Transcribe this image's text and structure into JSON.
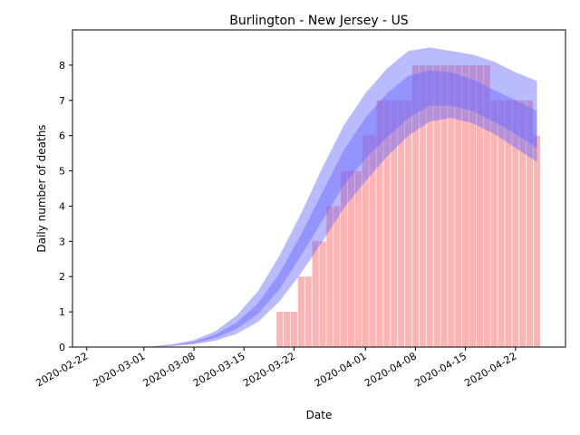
{
  "chart_data": {
    "type": "bar",
    "title": "Burlington - New Jersey - US",
    "xlabel": "Date",
    "ylabel": "Daily number of deaths",
    "x_tick_labels": [
      "2020-02-22",
      "2020-03-01",
      "2020-03-08",
      "2020-03-15",
      "2020-03-22",
      "2020-04-01",
      "2020-04-08",
      "2020-04-15",
      "2020-04-22"
    ],
    "y_tick_labels": [
      "0",
      "1",
      "2",
      "3",
      "4",
      "5",
      "6",
      "7",
      "8"
    ],
    "ylim": [
      0,
      9
    ],
    "xlim": [
      "2020-02-20",
      "2020-04-29"
    ],
    "bar_color": "#ff9999",
    "band_color": "#6666ff",
    "bars": {
      "dates": [
        "2020-03-20",
        "2020-03-21",
        "2020-03-22",
        "2020-03-23",
        "2020-03-24",
        "2020-03-25",
        "2020-03-26",
        "2020-03-27",
        "2020-03-28",
        "2020-03-29",
        "2020-03-30",
        "2020-03-31",
        "2020-04-01",
        "2020-04-02",
        "2020-04-03",
        "2020-04-04",
        "2020-04-05",
        "2020-04-06",
        "2020-04-07",
        "2020-04-08",
        "2020-04-09",
        "2020-04-10",
        "2020-04-11",
        "2020-04-12",
        "2020-04-13",
        "2020-04-14",
        "2020-04-15",
        "2020-04-16",
        "2020-04-17",
        "2020-04-18",
        "2020-04-19",
        "2020-04-20",
        "2020-04-21",
        "2020-04-22",
        "2020-04-23",
        "2020-04-24",
        "2020-04-25"
      ],
      "values": [
        1,
        1,
        1,
        2,
        2,
        3,
        3,
        4,
        4,
        5,
        5,
        5,
        6,
        6,
        7,
        7,
        7,
        7,
        7,
        8,
        8,
        8,
        8,
        8,
        8,
        8,
        8,
        8,
        8,
        8,
        7,
        7,
        7,
        7,
        7,
        7,
        6
      ]
    },
    "bands": {
      "dates": [
        "2020-02-28",
        "2020-03-02",
        "2020-03-05",
        "2020-03-08",
        "2020-03-11",
        "2020-03-14",
        "2020-03-17",
        "2020-03-20",
        "2020-03-23",
        "2020-03-26",
        "2020-03-29",
        "2020-04-01",
        "2020-04-04",
        "2020-04-07",
        "2020-04-10",
        "2020-04-13",
        "2020-04-16",
        "2020-04-19",
        "2020-04-22",
        "2020-04-25"
      ],
      "outer_upper": [
        0,
        0.02,
        0.08,
        0.2,
        0.45,
        0.9,
        1.6,
        2.6,
        3.8,
        5.1,
        6.3,
        7.2,
        7.9,
        8.4,
        8.5,
        8.4,
        8.3,
        8.1,
        7.8,
        7.55
      ],
      "inner_upper": [
        0,
        0.01,
        0.06,
        0.15,
        0.35,
        0.7,
        1.25,
        2.1,
        3.2,
        4.4,
        5.6,
        6.5,
        7.2,
        7.7,
        7.85,
        7.8,
        7.6,
        7.3,
        7.0,
        6.7
      ],
      "inner_lower": [
        0,
        0.01,
        0.04,
        0.11,
        0.26,
        0.52,
        0.95,
        1.65,
        2.6,
        3.6,
        4.6,
        5.35,
        5.95,
        6.5,
        6.85,
        6.85,
        6.7,
        6.4,
        6.05,
        5.65
      ],
      "outer_lower": [
        0,
        0,
        0.03,
        0.08,
        0.18,
        0.38,
        0.72,
        1.3,
        2.1,
        3.0,
        3.95,
        4.7,
        5.4,
        6.0,
        6.4,
        6.5,
        6.35,
        6.05,
        5.65,
        5.25
      ]
    }
  }
}
